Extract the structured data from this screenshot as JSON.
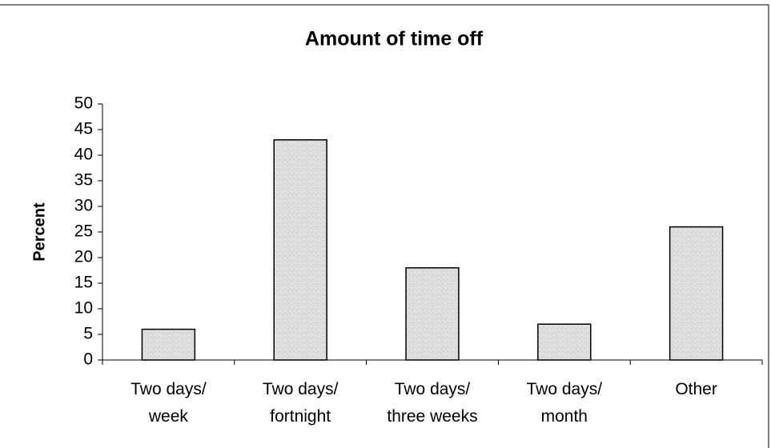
{
  "chart_data": {
    "type": "bar",
    "title": "Amount of time off",
    "y_label": "Percent",
    "categories": [
      "Two days/\nweek",
      "Two days/\nfortnight",
      "Two days/\nthree weeks",
      "Two days/\nmonth",
      "Other"
    ],
    "values": [
      6,
      43,
      18,
      7,
      26
    ],
    "color": "#dcdcdc",
    "ylim": [
      0,
      50
    ],
    "yticks": [
      0,
      5,
      10,
      15,
      20,
      25,
      30,
      35,
      40,
      45,
      50
    ],
    "grid": false
  }
}
